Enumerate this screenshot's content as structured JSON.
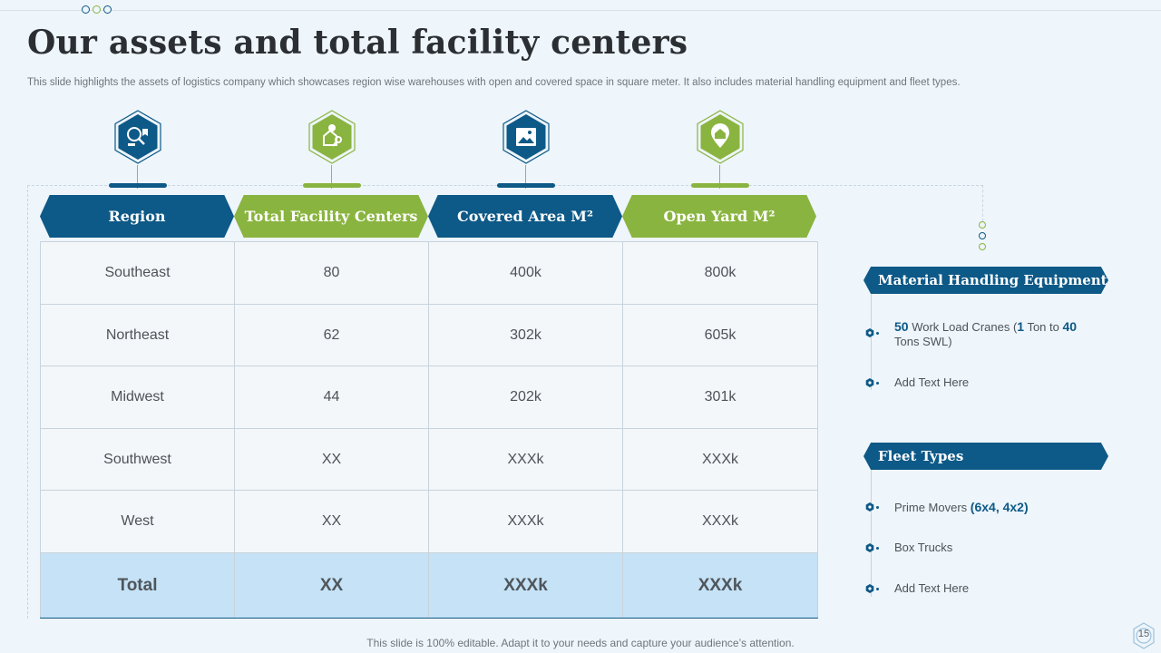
{
  "title": "Our assets and total facility centers",
  "subtitle": "This slide highlights the assets of logistics company which showcases region wise warehouses with open and covered space in square meter. It also includes material handling equipment and fleet types.",
  "icons": [
    "inspection-icon",
    "facility-key-icon",
    "image-icon",
    "location-home-icon"
  ],
  "table": {
    "headers": [
      "Region",
      "Total Facility Centers",
      "Covered Area M²",
      "Open Yard M²"
    ],
    "rows": [
      [
        "Southeast",
        "80",
        "400k",
        "800k"
      ],
      [
        "Northeast",
        "62",
        "302k",
        "605k"
      ],
      [
        "Midwest",
        "44",
        "202k",
        "301k"
      ],
      [
        "Southwest",
        "XX",
        "XXXk",
        "XXXk"
      ],
      [
        "West",
        "XX",
        "XXXk",
        "XXXk"
      ]
    ],
    "total": [
      "Total",
      "XX",
      "XXXk",
      "XXXk"
    ]
  },
  "material_handling": {
    "title": "Material Handling Equipment",
    "item1": {
      "n1": "50",
      "t1": " Work Load Cranes (",
      "n2": "1",
      "t2": " Ton to ",
      "n3": "40",
      "t3": " Tons SWL)"
    },
    "item2": "Add Text Here"
  },
  "fleet": {
    "title": "Fleet Types",
    "item1": {
      "text": "Prime Movers ",
      "hl": "(6x4, 4x2)"
    },
    "item2": "Box Trucks",
    "item3": "Add Text Here"
  },
  "footer": "This slide is 100% editable. Adapt it to your needs and capture your audience’s attention.",
  "page_number": "15",
  "colors": {
    "blue": "#0d5987",
    "green": "#8ab440",
    "total_row": "#c5e2f6",
    "background": "#eef5fb"
  }
}
